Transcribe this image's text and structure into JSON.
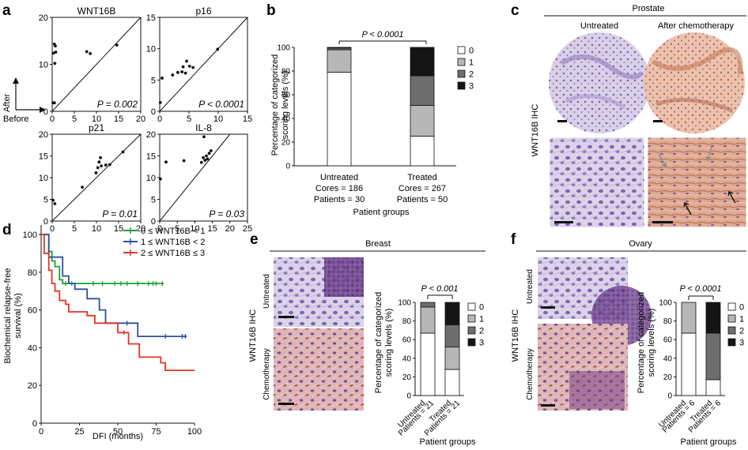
{
  "figure": {
    "panel_labels": [
      "a",
      "b",
      "c",
      "d",
      "e",
      "f"
    ],
    "colors": {
      "level0": "#ffffff",
      "level1": "#b7b7b7",
      "level2": "#6e6e6e",
      "level3": "#151515",
      "green": "#1e9e3a",
      "blue": "#2e4fa3",
      "red": "#e53327",
      "tissue_purple": "#9a86c2",
      "tissue_pink": "#d9a48d"
    }
  },
  "panel_a": {
    "axis_after": "After",
    "axis_before": "Before",
    "plots": [
      {
        "title": "WNT16B",
        "p_text": "P = 0.002"
      },
      {
        "title": "p16",
        "p_text": "P < 0.0001"
      },
      {
        "title": "p21",
        "p_text": "P = 0.01"
      },
      {
        "title": "IL-8",
        "p_text": "P = 0.03"
      }
    ]
  },
  "panel_b": {
    "ylabel_line1": "Percentage of categorized",
    "ylabel_line2": "scoring levels (%)",
    "p_text": "P < 0.0001",
    "legend": [
      "0",
      "1",
      "2",
      "3"
    ],
    "groups": [
      {
        "line1": "Untreated",
        "line2": "Cores = 186",
        "line3": "Patients = 30"
      },
      {
        "line1": "Treated",
        "line2": "Cores = 267",
        "line3": "Patients = 50"
      }
    ],
    "xlabel": "Patient groups"
  },
  "panel_c": {
    "header": "Prostate",
    "col_untreated": "Untreated",
    "col_chemo": "After chemotherapy",
    "row_label": "WNT16B IHC"
  },
  "panel_d": {
    "ylabel_line1": "Biochemical relapse-free",
    "ylabel_line2": "survival (%)",
    "xlabel": "DFI (months)",
    "legend": [
      "0 ≤ WNT16B < 1",
      "1 ≤ WNT16B < 2",
      "2 ≤ WNT16B ≤  3"
    ]
  },
  "panel_e": {
    "header": "Breast",
    "row_untreated": "Untreated",
    "row_chemo": "Chemotherapy",
    "side_label": "WNT16B IHC",
    "ylabel_line1": "Percentage of categorized",
    "ylabel_line2": "scoring levels (%)",
    "p_text": "P < 0.001",
    "legend": [
      "0",
      "1",
      "2",
      "3"
    ],
    "cat1_line1": "Untreated",
    "cat1_line2": "Patients = 21",
    "cat2_line1": "Treated",
    "cat2_line2": "Patients = 21",
    "xlabel": "Patient groups"
  },
  "panel_f": {
    "header": "Ovary",
    "row_untreated": "Untreated",
    "row_chemo": "Chemotherapy",
    "side_label": "WNT16B IHC",
    "ylabel_line1": "Percentage of categorized",
    "ylabel_line2": "scoring levels (%)",
    "p_text": "P < 0.0001",
    "legend": [
      "0",
      "1",
      "2",
      "3"
    ],
    "cat1_line1": "Untreated",
    "cat1_line2": "Patients = 6",
    "cat2_line1": "Treated",
    "cat2_line2": "Patients = 6",
    "xlabel": "Patient groups"
  },
  "chart_data": [
    {
      "type": "scatter",
      "panel": "a",
      "title": "WNT16B",
      "xlim": [
        0,
        20
      ],
      "ylim": [
        0,
        20
      ],
      "xticks": [
        0,
        5,
        10,
        15,
        20
      ],
      "yticks": [
        0,
        10,
        20
      ],
      "diagonal": true,
      "points": [
        [
          0.2,
          1.8
        ],
        [
          0.5,
          1.8
        ],
        [
          0.3,
          12.4
        ],
        [
          0.5,
          14.3
        ],
        [
          0.7,
          13.9
        ],
        [
          0.8,
          12.6
        ],
        [
          0.6,
          10.2
        ],
        [
          7.8,
          12.7
        ],
        [
          8.6,
          12.3
        ],
        [
          14.6,
          14.1
        ]
      ]
    },
    {
      "type": "scatter",
      "panel": "a",
      "title": "p16",
      "xlim": [
        0,
        15
      ],
      "ylim": [
        0,
        15
      ],
      "xticks": [
        0,
        5,
        10,
        15
      ],
      "yticks": [
        0,
        5,
        10,
        15
      ],
      "diagonal": true,
      "points": [
        [
          0.1,
          1.4
        ],
        [
          0.4,
          5.3
        ],
        [
          2.2,
          5.8
        ],
        [
          3.1,
          6.2
        ],
        [
          3.8,
          6.3
        ],
        [
          4.0,
          7.1
        ],
        [
          4.4,
          6.1
        ],
        [
          4.6,
          8.0
        ],
        [
          5.1,
          7.2
        ],
        [
          5.7,
          7.0
        ],
        [
          9.9,
          9.9
        ]
      ]
    },
    {
      "type": "scatter",
      "panel": "a",
      "title": "p21",
      "xlim": [
        0,
        20
      ],
      "ylim": [
        0,
        20
      ],
      "xticks": [
        0,
        5,
        10,
        15,
        20
      ],
      "yticks": [
        0,
        5,
        10,
        15,
        20
      ],
      "diagonal": true,
      "points": [
        [
          0.2,
          4.8
        ],
        [
          0.6,
          4.0
        ],
        [
          6.8,
          7.8
        ],
        [
          9.9,
          11.1
        ],
        [
          10.3,
          12.3
        ],
        [
          10.6,
          13.6
        ],
        [
          10.9,
          14.6
        ],
        [
          11.1,
          12.7
        ],
        [
          12.1,
          12.9
        ],
        [
          13.0,
          13.0
        ],
        [
          16.0,
          15.9
        ]
      ]
    },
    {
      "type": "scatter",
      "panel": "a",
      "title": "IL-8",
      "xlim": [
        0,
        25
      ],
      "ylim": [
        0,
        20
      ],
      "xticks": [
        0,
        5,
        10,
        15,
        20,
        25
      ],
      "yticks": [
        0,
        5,
        10,
        15,
        20
      ],
      "diagonal": true,
      "points": [
        [
          0.2,
          9.7
        ],
        [
          1.8,
          13.6
        ],
        [
          6.9,
          13.9
        ],
        [
          11.9,
          13.5
        ],
        [
          12.4,
          14.6
        ],
        [
          12.9,
          14.0
        ],
        [
          13.3,
          15.0
        ],
        [
          13.6,
          14.3
        ],
        [
          14.1,
          15.6
        ],
        [
          14.6,
          16.2
        ],
        [
          12.6,
          19.4
        ]
      ]
    },
    {
      "type": "bar",
      "stacked": true,
      "panel": "b",
      "ylim": [
        0,
        100
      ],
      "yticks": [
        0,
        20,
        40,
        60,
        80,
        100
      ],
      "categories": [
        "Untreated",
        "Treated"
      ],
      "series": [
        {
          "name": "0",
          "values": [
            79,
            25
          ]
        },
        {
          "name": "1",
          "values": [
            19,
            26
          ]
        },
        {
          "name": "2",
          "values": [
            1.5,
            25
          ]
        },
        {
          "name": "3",
          "values": [
            0.5,
            24
          ]
        }
      ]
    },
    {
      "type": "line",
      "panel": "d",
      "xlim": [
        0,
        100
      ],
      "ylim": [
        0,
        100
      ],
      "xticks": [
        0,
        25,
        50,
        75,
        100
      ],
      "yticks": [
        0,
        20,
        40,
        60,
        80,
        100
      ],
      "series": [
        {
          "name": "0 ≤ WNT16B < 1",
          "points": [
            [
              0,
              100
            ],
            [
              5,
              100
            ],
            [
              5,
              91
            ],
            [
              7,
              91
            ],
            [
              7,
              86
            ],
            [
              9,
              86
            ],
            [
              9,
              83
            ],
            [
              12,
              83
            ],
            [
              12,
              76
            ],
            [
              14,
              76
            ],
            [
              14,
              74
            ],
            [
              80,
              74
            ]
          ],
          "censored": [
            16,
            20,
            34,
            40,
            48,
            52,
            56,
            63,
            70,
            73,
            75,
            79
          ]
        },
        {
          "name": "1 ≤ WNT16B < 2",
          "points": [
            [
              0,
              100
            ],
            [
              5,
              100
            ],
            [
              5,
              88
            ],
            [
              14,
              88
            ],
            [
              14,
              78
            ],
            [
              18,
              78
            ],
            [
              18,
              74
            ],
            [
              22,
              74
            ],
            [
              22,
              71
            ],
            [
              30,
              71
            ],
            [
              30,
              66
            ],
            [
              38,
              66
            ],
            [
              38,
              60
            ],
            [
              42,
              60
            ],
            [
              42,
              53
            ],
            [
              63,
              53
            ],
            [
              63,
              46
            ],
            [
              95,
              46
            ]
          ],
          "censored": [
            56,
            81,
            92,
            94
          ]
        },
        {
          "name": "2 ≤ WNT16B ≤  3",
          "points": [
            [
              0,
              100
            ],
            [
              2,
              100
            ],
            [
              2,
              90
            ],
            [
              5,
              90
            ],
            [
              5,
              81
            ],
            [
              7,
              81
            ],
            [
              7,
              74
            ],
            [
              9,
              74
            ],
            [
              9,
              70
            ],
            [
              12,
              70
            ],
            [
              12,
              65
            ],
            [
              16,
              65
            ],
            [
              16,
              63
            ],
            [
              18,
              63
            ],
            [
              18,
              59
            ],
            [
              30,
              59
            ],
            [
              30,
              57
            ],
            [
              35,
              57
            ],
            [
              35,
              53
            ],
            [
              50,
              53
            ],
            [
              50,
              48
            ],
            [
              57,
              48
            ],
            [
              57,
              42
            ],
            [
              64,
              42
            ],
            [
              64,
              35
            ],
            [
              78,
              35
            ],
            [
              78,
              32
            ],
            [
              81,
              32
            ],
            [
              81,
              28
            ],
            [
              100,
              28
            ]
          ],
          "censored": [
            54
          ]
        }
      ]
    },
    {
      "type": "bar",
      "stacked": true,
      "panel": "e",
      "ylim": [
        0,
        100
      ],
      "yticks": [
        0,
        20,
        40,
        60,
        80,
        100
      ],
      "categories": [
        "Untreated",
        "Treated"
      ],
      "series": [
        {
          "name": "0",
          "values": [
            67,
            28
          ]
        },
        {
          "name": "1",
          "values": [
            28,
            24
          ]
        },
        {
          "name": "2",
          "values": [
            5,
            24
          ]
        },
        {
          "name": "3",
          "values": [
            0,
            24
          ]
        }
      ]
    },
    {
      "type": "bar",
      "stacked": true,
      "panel": "f",
      "ylim": [
        0,
        100
      ],
      "yticks": [
        0,
        20,
        40,
        60,
        80,
        100
      ],
      "categories": [
        "Untreated",
        "Treated"
      ],
      "series": [
        {
          "name": "0",
          "values": [
            67,
            17
          ]
        },
        {
          "name": "1",
          "values": [
            33,
            0
          ]
        },
        {
          "name": "2",
          "values": [
            0,
            50
          ]
        },
        {
          "name": "3",
          "values": [
            0,
            33
          ]
        }
      ]
    }
  ]
}
